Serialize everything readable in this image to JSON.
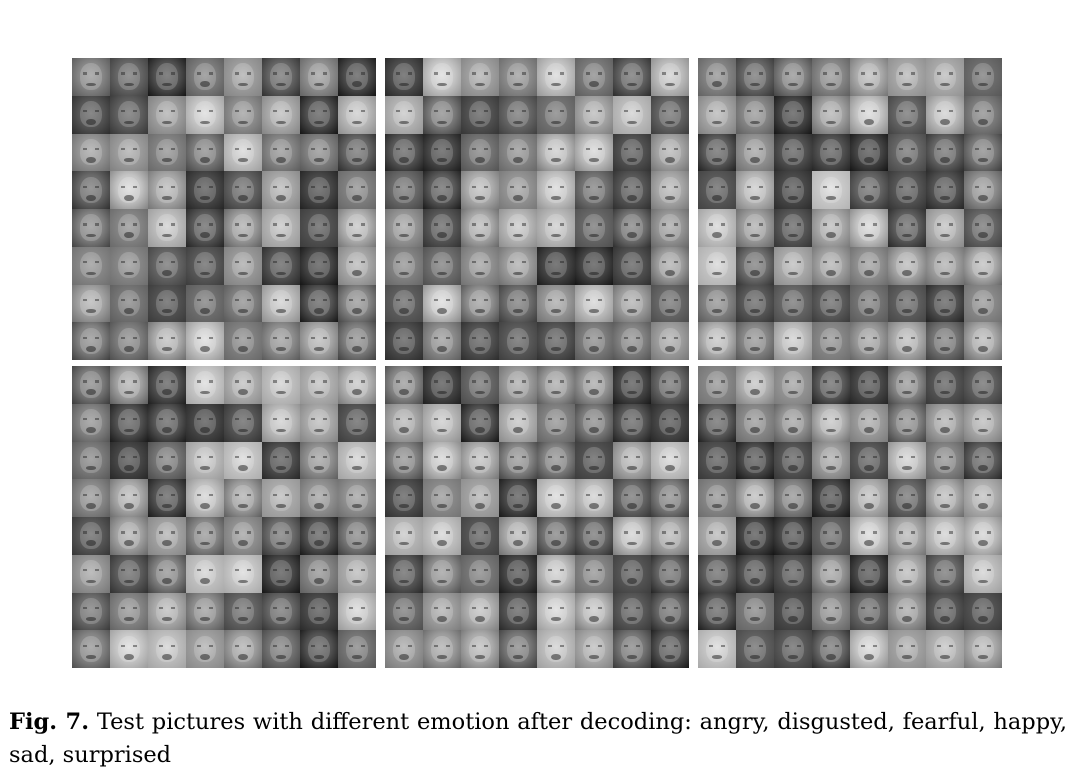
{
  "figure": {
    "columns": 3,
    "rows": 2,
    "grid_per_panel": [
      8,
      8
    ]
  },
  "caption": {
    "label": "Fig. 7.",
    "text": "Test pictures with different emotion after decoding: angry, disgusted, fearful, happy, sad, surprised"
  }
}
